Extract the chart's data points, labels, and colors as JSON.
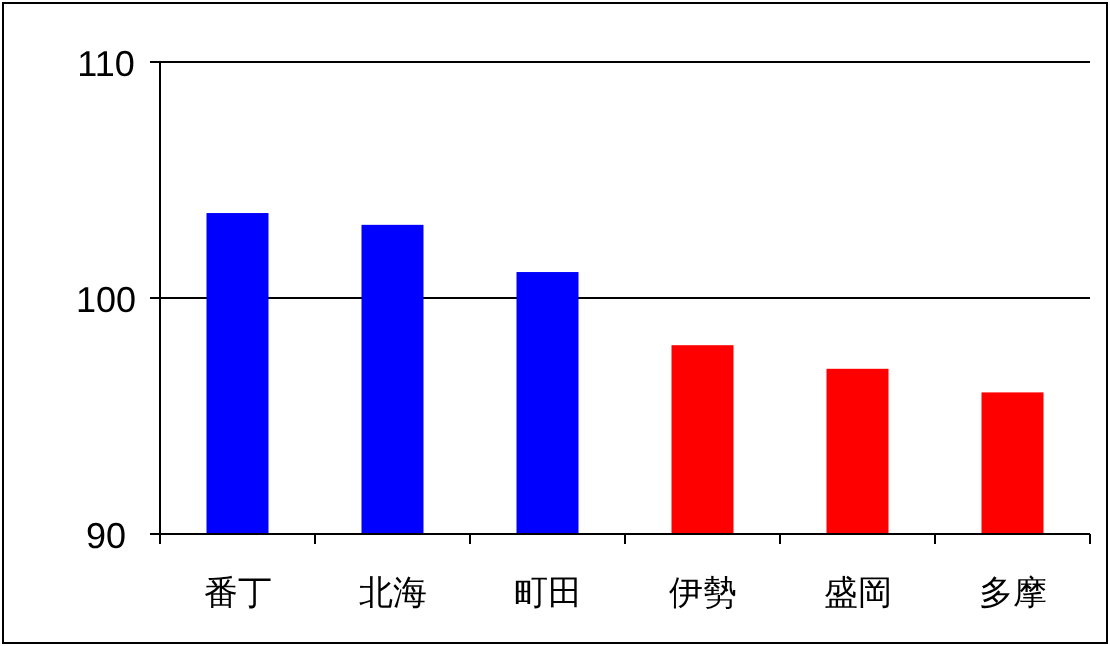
{
  "chart_data": {
    "type": "bar",
    "categories": [
      "番丁",
      "北海",
      "町田",
      "伊勢",
      "盛岡",
      "多摩"
    ],
    "values": [
      103.6,
      103.1,
      101.1,
      98.0,
      97.0,
      96.0
    ],
    "colors": [
      "#0000ff",
      "#0000ff",
      "#0000ff",
      "#ff0000",
      "#ff0000",
      "#ff0000"
    ],
    "ylim": [
      90,
      110
    ],
    "yticks": [
      90,
      100,
      110
    ],
    "grid": "y"
  }
}
